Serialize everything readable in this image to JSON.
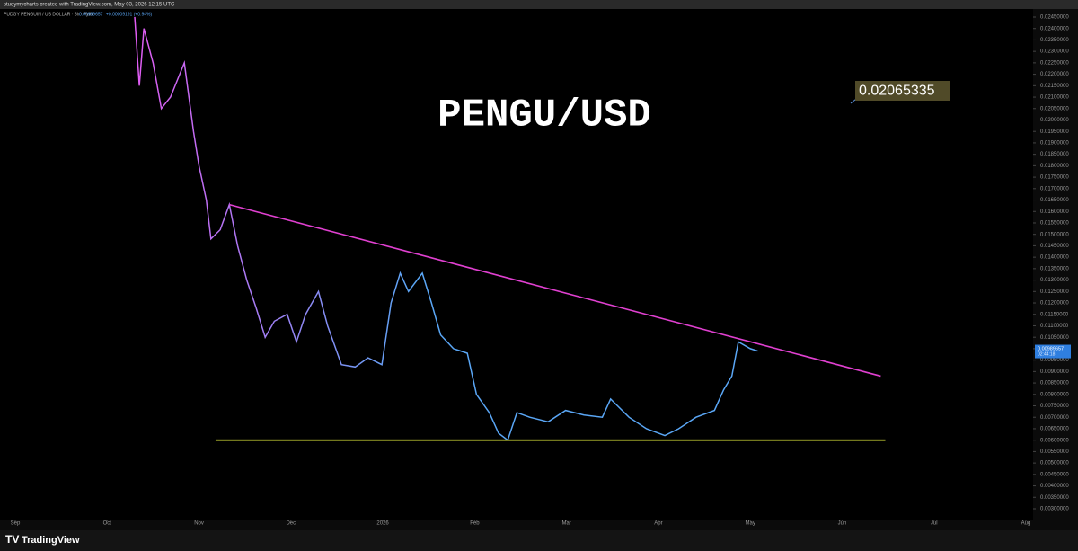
{
  "header": {
    "credit": "studymycharts created with TradingView.com, May 03, 2026 12:15 UTC",
    "symbol": "PUDGY PENGUIN / US DOLLAR · 8h · Pyth",
    "price": "0.00989657",
    "change": "+0.00009191 (+0.94%)"
  },
  "footer": {
    "brand": "TradingView"
  },
  "chart_data": {
    "type": "line",
    "title": "PENGU/USD",
    "annotation": "0.02065335",
    "last_price": 0.00989657,
    "countdown": "02:44:18",
    "colors": [
      "#e05cf2",
      "#5aa6f5"
    ],
    "series": [
      {
        "name": "PENGU/USD",
        "x": [
          1.3,
          1.35,
          1.4,
          1.5,
          1.59,
          1.69,
          1.84,
          1.94,
          2.0,
          2.08,
          2.13,
          2.23,
          2.33,
          2.42,
          2.52,
          2.62,
          2.72,
          2.82,
          2.96,
          3.06,
          3.16,
          3.3,
          3.4,
          3.55,
          3.7,
          3.84,
          3.99,
          4.09,
          4.19,
          4.28,
          4.43,
          4.53,
          4.63,
          4.77,
          4.92,
          5.02,
          5.16,
          5.26,
          5.36,
          5.46,
          5.6,
          5.8,
          5.99,
          6.19,
          6.39,
          6.48,
          6.68,
          6.87,
          7.07,
          7.22,
          7.41,
          7.61,
          7.71,
          7.8,
          7.87,
          8.0,
          8.08
        ],
        "values": [
          0.0245,
          0.0215,
          0.024,
          0.0225,
          0.0205,
          0.021,
          0.0225,
          0.0195,
          0.018,
          0.0165,
          0.0148,
          0.0152,
          0.0163,
          0.0145,
          0.013,
          0.0118,
          0.0105,
          0.0112,
          0.0115,
          0.0103,
          0.0115,
          0.0125,
          0.011,
          0.0093,
          0.0092,
          0.0096,
          0.0093,
          0.012,
          0.0133,
          0.0125,
          0.0133,
          0.012,
          0.0106,
          0.01,
          0.0098,
          0.008,
          0.0072,
          0.0063,
          0.006,
          0.0072,
          0.007,
          0.0068,
          0.0073,
          0.0071,
          0.007,
          0.0078,
          0.007,
          0.0065,
          0.0062,
          0.0065,
          0.007,
          0.0073,
          0.0082,
          0.0088,
          0.0103,
          0.01,
          0.0099
        ]
      }
    ],
    "trendlines": [
      {
        "color": "#e040d0",
        "x": [
          2.33,
          9.42
        ],
        "y": [
          0.0163,
          0.0088
        ]
      },
      {
        "color": "#e6f03c",
        "x": [
          2.18,
          9.47
        ],
        "y": [
          0.006,
          0.006
        ]
      }
    ],
    "xlim": [
      0,
      11
    ],
    "xticks": [
      {
        "value": 0,
        "label": "Sep"
      },
      {
        "value": 1,
        "label": "Oct"
      },
      {
        "value": 2,
        "label": "Nov"
      },
      {
        "value": 3,
        "label": "Dec"
      },
      {
        "value": 4,
        "label": "2026"
      },
      {
        "value": 5,
        "label": "Feb"
      },
      {
        "value": 6,
        "label": "Mar"
      },
      {
        "value": 7,
        "label": "Apr"
      },
      {
        "value": 8,
        "label": "May"
      },
      {
        "value": 9,
        "label": "Jun"
      },
      {
        "value": 10,
        "label": "Jul"
      },
      {
        "value": 11,
        "label": "Aug"
      }
    ],
    "ylim": [
      0.003,
      0.0245
    ],
    "yticks": [
      {
        "value": 0.003,
        "label": "0.00300000"
      },
      {
        "value": 0.0035,
        "label": "0.00350000"
      },
      {
        "value": 0.004,
        "label": "0.00400000"
      },
      {
        "value": 0.0045,
        "label": "0.00450000"
      },
      {
        "value": 0.005,
        "label": "0.00500000"
      },
      {
        "value": 0.0055,
        "label": "0.00550000"
      },
      {
        "value": 0.006,
        "label": "0.00600000"
      },
      {
        "value": 0.0065,
        "label": "0.00650000"
      },
      {
        "value": 0.007,
        "label": "0.00700000"
      },
      {
        "value": 0.0075,
        "label": "0.00750000"
      },
      {
        "value": 0.008,
        "label": "0.00800000"
      },
      {
        "value": 0.0085,
        "label": "0.00850000"
      },
      {
        "value": 0.009,
        "label": "0.00900000"
      },
      {
        "value": 0.0095,
        "label": "0.00950000"
      },
      {
        "value": 0.01,
        "label": "0.01000000"
      },
      {
        "value": 0.0105,
        "label": "0.01050000"
      },
      {
        "value": 0.011,
        "label": "0.01100000"
      },
      {
        "value": 0.0115,
        "label": "0.01150000"
      },
      {
        "value": 0.012,
        "label": "0.01200000"
      },
      {
        "value": 0.0125,
        "label": "0.01250000"
      },
      {
        "value": 0.013,
        "label": "0.01300000"
      },
      {
        "value": 0.0135,
        "label": "0.01350000"
      },
      {
        "value": 0.014,
        "label": "0.01400000"
      },
      {
        "value": 0.0145,
        "label": "0.01450000"
      },
      {
        "value": 0.015,
        "label": "0.01500000"
      },
      {
        "value": 0.0155,
        "label": "0.01550000"
      },
      {
        "value": 0.016,
        "label": "0.01600000"
      },
      {
        "value": 0.0165,
        "label": "0.01650000"
      },
      {
        "value": 0.017,
        "label": "0.01700000"
      },
      {
        "value": 0.0175,
        "label": "0.01750000"
      },
      {
        "value": 0.018,
        "label": "0.01800000"
      },
      {
        "value": 0.0185,
        "label": "0.01850000"
      },
      {
        "value": 0.019,
        "label": "0.01900000"
      },
      {
        "value": 0.0195,
        "label": "0.01950000"
      },
      {
        "value": 0.02,
        "label": "0.02000000"
      },
      {
        "value": 0.0205,
        "label": "0.02050000"
      },
      {
        "value": 0.021,
        "label": "0.02100000"
      },
      {
        "value": 0.0215,
        "label": "0.02150000"
      },
      {
        "value": 0.022,
        "label": "0.02200000"
      },
      {
        "value": 0.0225,
        "label": "0.02250000"
      },
      {
        "value": 0.023,
        "label": "0.02300000"
      },
      {
        "value": 0.0235,
        "label": "0.02350000"
      },
      {
        "value": 0.024,
        "label": "0.02400000"
      },
      {
        "value": 0.0245,
        "label": "0.02450000"
      }
    ]
  }
}
